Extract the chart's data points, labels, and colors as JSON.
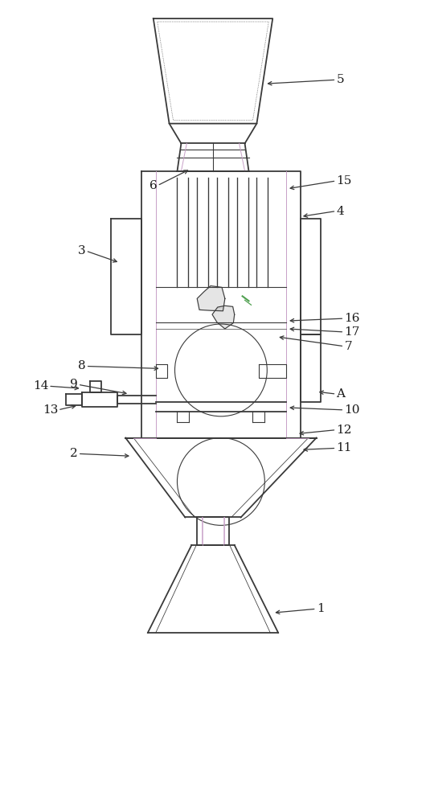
{
  "bg_color": "#ffffff",
  "line_color": "#3a3a3a",
  "label_color": "#1a1a1a",
  "purple_color": "#c8a0c8",
  "green_color": "#50a050",
  "fig_width": 5.3,
  "fig_height": 10.0
}
